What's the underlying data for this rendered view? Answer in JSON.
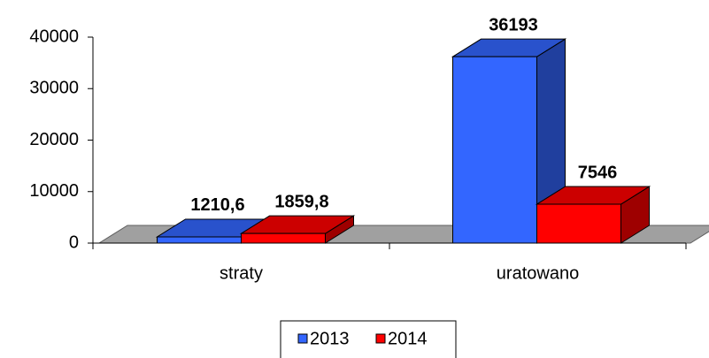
{
  "chart_data": {
    "type": "bar",
    "categories": [
      "straty",
      "uratowano"
    ],
    "series": [
      {
        "name": "2013",
        "color": "#3366ff",
        "values": [
          1210.6,
          36193
        ],
        "value_labels": [
          "1210,6",
          "36193"
        ]
      },
      {
        "name": "2014",
        "color": "#ff0000",
        "values": [
          1859.8,
          7546
        ],
        "value_labels": [
          "1859,8",
          "7546"
        ]
      }
    ],
    "ylim": [
      0,
      40000
    ],
    "yticks": [
      0,
      10000,
      20000,
      30000,
      40000
    ],
    "legend": "bottom"
  }
}
